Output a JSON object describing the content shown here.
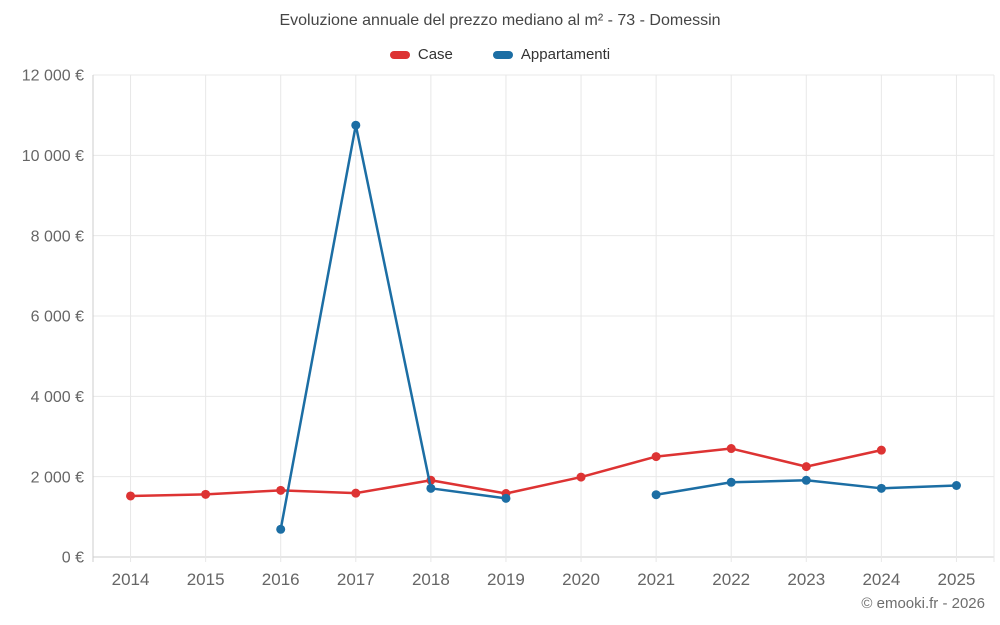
{
  "chart": {
    "title": "Evoluzione annuale del prezzo mediano al m² - 73 - Domessin",
    "footer": "© emooki.fr - 2026",
    "background": "#ffffff",
    "grid_color": "#e8e8e8",
    "axis_color": "#cccccc",
    "tick_label_color": "#666666",
    "title_color": "#454545",
    "legend_label_color": "#333333"
  },
  "chart_data": {
    "type": "line",
    "title": "Evoluzione annuale del prezzo mediano al m² - 73 - Domessin",
    "categories": [
      "2014",
      "2015",
      "2016",
      "2017",
      "2018",
      "2019",
      "2020",
      "2021",
      "2022",
      "2023",
      "2024",
      "2025"
    ],
    "series": [
      {
        "name": "Case",
        "color": "#dd3333",
        "values": [
          1520,
          1560,
          1660,
          1590,
          1910,
          1580,
          1990,
          2500,
          2700,
          2250,
          2660,
          null
        ]
      },
      {
        "name": "Appartamenti",
        "color": "#1c6ea4",
        "values": [
          null,
          null,
          690,
          10750,
          1710,
          1460,
          null,
          1550,
          1860,
          1910,
          1710,
          1780
        ]
      }
    ],
    "ylim": [
      0,
      12000
    ],
    "ytick_values": [
      0,
      2000,
      4000,
      6000,
      8000,
      10000,
      12000
    ],
    "ytick_labels": [
      "0 €",
      "2 000 €",
      "4 000 €",
      "6 000 €",
      "8 000 €",
      "10 000 €",
      "12 000 €"
    ],
    "xlabel": "",
    "ylabel": "",
    "grid": true,
    "legend_position": "top",
    "marker": "circle"
  }
}
